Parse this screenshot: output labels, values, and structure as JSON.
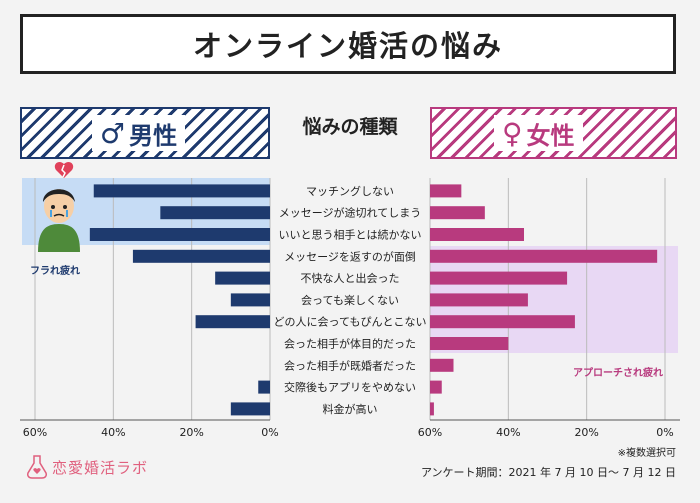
{
  "title": "オンライン婚活の悩み",
  "header": {
    "male_symbol": "♂",
    "male_label": "男性",
    "female_symbol": "♀",
    "female_label": "女性",
    "center": "悩みの種類"
  },
  "highlights": {
    "male": "フラれ疲れ",
    "female": "アプローチされ疲れ"
  },
  "colors": {
    "male": "#1e3a6e",
    "female": "#b83a7e",
    "male_band": "#c6dcf5",
    "female_band": "#e8d8f4"
  },
  "chart_data": {
    "type": "bar",
    "orientation": "horizontal-butterfly",
    "categories": [
      "マッチングしない",
      "メッセージが途切れてしまう",
      "いいと思う相手とは続かない",
      "メッセージを返すのが面倒",
      "不快な人と出会った",
      "会っても楽しくない",
      "どの人に会ってもぴんとこない",
      "会った相手が体目的だった",
      "会った相手が既婚者だった",
      "交際後もアプリをやめない",
      "料金が高い"
    ],
    "series": [
      {
        "name": "男性",
        "values": [
          45,
          28,
          46,
          35,
          14,
          10,
          19,
          0,
          0,
          3,
          10
        ]
      },
      {
        "name": "女性",
        "values": [
          8,
          14,
          24,
          58,
          35,
          25,
          37,
          20,
          6,
          3,
          1
        ]
      }
    ],
    "xlim": [
      0,
      60
    ],
    "ticks": [
      60,
      40,
      20,
      0
    ],
    "tick_labels": [
      "60%",
      "40%",
      "20%",
      "0%"
    ],
    "grid": true
  },
  "footnote": "※複数選択可",
  "survey_period": "アンケート期間：2021 年 7 月 10 日～ 7 月 12 日",
  "logo_text": "恋愛婚活ラボ"
}
